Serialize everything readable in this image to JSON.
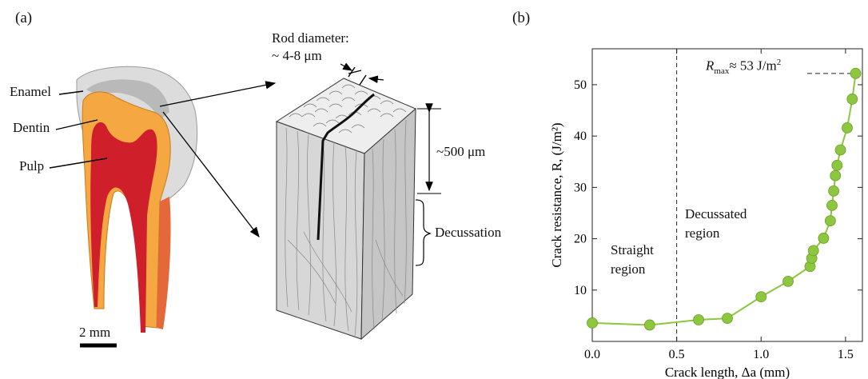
{
  "panel_a": {
    "label": "(a)",
    "tooth_labels": {
      "enamel": "Enamel",
      "dentin": "Dentin",
      "pulp": "Pulp"
    },
    "scale_bar": "2 mm",
    "rod_diameter_title": "Rod diameter:",
    "rod_diameter_value": "~ 4-8 μm",
    "depth_label": "~500 μm",
    "decussation_label": "Decussation"
  },
  "panel_b": {
    "label": "(b)",
    "rmax_symbol": "R",
    "rmax_sub": "max",
    "rmax_value": "≈ 53 J/m",
    "rmax_sup": "2",
    "region_straight": [
      "Straight",
      "region"
    ],
    "region_decussated": [
      "Decussated",
      "region"
    ]
  },
  "chart_data": {
    "type": "line",
    "xlabel": "Crack length, Δa (mm)",
    "ylabel": "Crack resistance, R, (J/m²)",
    "xlim": [
      0,
      1.6
    ],
    "ylim": [
      0,
      57
    ],
    "xticks": [
      "0.0",
      "0.5",
      "1.0",
      "1.5"
    ],
    "yticks": [
      "10",
      "20",
      "30",
      "40",
      "50"
    ],
    "xtick_values": [
      0,
      0.5,
      1.0,
      1.5
    ],
    "ytick_values": [
      10,
      20,
      30,
      40,
      50
    ],
    "grid": false,
    "divider_x": 0.5,
    "series": [
      {
        "color": "#8dc63f",
        "x": [
          0.0,
          0.34,
          0.63,
          0.8,
          1.0,
          1.16,
          1.29,
          1.3,
          1.31,
          1.37,
          1.41,
          1.42,
          1.43,
          1.44,
          1.45,
          1.47,
          1.51,
          1.54,
          1.56
        ],
        "y": [
          3.6,
          3.2,
          4.2,
          4.5,
          8.7,
          11.7,
          14.6,
          16.2,
          17.7,
          20.1,
          23.5,
          26.5,
          29.3,
          32.3,
          34.3,
          37.3,
          41.6,
          47.2,
          52.2
        ]
      }
    ]
  }
}
